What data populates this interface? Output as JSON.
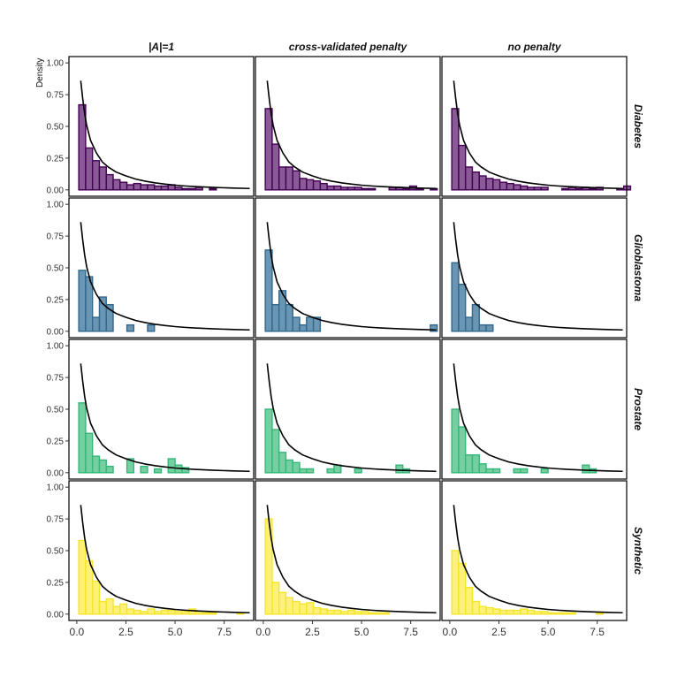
{
  "chart_data": {
    "type": "facet-histogram",
    "title": "",
    "ylabel": "Density",
    "xlabel": "",
    "xlim": [
      -0.4,
      9.0
    ],
    "ylim": [
      -0.05,
      1.05
    ],
    "x_ticks": [
      0.0,
      2.5,
      5.0,
      7.5
    ],
    "x_tick_labels": [
      "0.0",
      "2.5",
      "5.0",
      "7.5"
    ],
    "y_ticks": [
      0.0,
      0.25,
      0.5,
      0.75,
      1.0
    ],
    "y_tick_labels": [
      "0.00",
      "0.25",
      "0.50",
      "0.75",
      "1.00"
    ],
    "grid": false,
    "bin_width": 0.35,
    "columns": [
      "|A|=1",
      "cross-validated penalty",
      "no penalty"
    ],
    "rows": [
      {
        "name": "Diabetes",
        "color": "#440154",
        "fill": "#8a5a97"
      },
      {
        "name": "Glioblastoma",
        "color": "#31688e",
        "fill": "#6a96b4"
      },
      {
        "name": "Prostate",
        "color": "#35b779",
        "fill": "#76cfa0"
      },
      {
        "name": "Synthetic",
        "color": "#f5e52a",
        "fill": "#fdf17a"
      }
    ],
    "curve": {
      "description_formula": "density curve",
      "x_start": 0.2,
      "x_end": 8.8,
      "points": [
        [
          0.2,
          0.86
        ],
        [
          0.3,
          0.72
        ],
        [
          0.4,
          0.6
        ],
        [
          0.5,
          0.51
        ],
        [
          0.7,
          0.39
        ],
        [
          1.0,
          0.29
        ],
        [
          1.3,
          0.22
        ],
        [
          1.6,
          0.18
        ],
        [
          2.0,
          0.14
        ],
        [
          2.5,
          0.11
        ],
        [
          3.0,
          0.085
        ],
        [
          3.5,
          0.068
        ],
        [
          4.0,
          0.055
        ],
        [
          4.5,
          0.045
        ],
        [
          5.0,
          0.037
        ],
        [
          5.5,
          0.031
        ],
        [
          6.0,
          0.026
        ],
        [
          7.0,
          0.019
        ],
        [
          8.0,
          0.014
        ],
        [
          8.8,
          0.011
        ]
      ]
    },
    "panels": [
      [
        {
          "bins": [
            [
              0.1,
              0.67
            ],
            [
              0.45,
              0.33
            ],
            [
              0.8,
              0.23
            ],
            [
              1.15,
              0.18
            ],
            [
              1.5,
              0.12
            ],
            [
              1.85,
              0.08
            ],
            [
              2.2,
              0.06
            ],
            [
              2.55,
              0.04
            ],
            [
              2.9,
              0.05
            ],
            [
              3.25,
              0.04
            ],
            [
              3.6,
              0.04
            ],
            [
              3.95,
              0.03
            ],
            [
              4.3,
              0.03
            ],
            [
              4.65,
              0.04
            ],
            [
              5.0,
              0.02
            ],
            [
              5.35,
              0.01
            ],
            [
              5.7,
              0.01
            ],
            [
              6.05,
              0.02
            ],
            [
              6.75,
              0.01
            ]
          ]
        },
        {
          "bins": [
            [
              0.1,
              0.64
            ],
            [
              0.45,
              0.36
            ],
            [
              0.8,
              0.18
            ],
            [
              1.15,
              0.18
            ],
            [
              1.5,
              0.15
            ],
            [
              1.85,
              0.09
            ],
            [
              2.2,
              0.08
            ],
            [
              2.55,
              0.07
            ],
            [
              2.9,
              0.05
            ],
            [
              3.25,
              0.03
            ],
            [
              3.6,
              0.03
            ],
            [
              3.95,
              0.02
            ],
            [
              4.3,
              0.02
            ],
            [
              4.65,
              0.02
            ],
            [
              5.0,
              0.01
            ],
            [
              5.35,
              0.01
            ],
            [
              6.4,
              0.02
            ],
            [
              6.75,
              0.02
            ],
            [
              7.1,
              0.01
            ],
            [
              7.45,
              0.03
            ],
            [
              7.8,
              0.01
            ],
            [
              8.5,
              0.01
            ]
          ]
        },
        {
          "bins": [
            [
              0.1,
              0.64
            ],
            [
              0.45,
              0.35
            ],
            [
              0.8,
              0.18
            ],
            [
              1.15,
              0.14
            ],
            [
              1.5,
              0.11
            ],
            [
              1.85,
              0.09
            ],
            [
              2.2,
              0.08
            ],
            [
              2.55,
              0.06
            ],
            [
              2.9,
              0.05
            ],
            [
              3.25,
              0.04
            ],
            [
              3.6,
              0.03
            ],
            [
              3.95,
              0.02
            ],
            [
              4.3,
              0.02
            ],
            [
              4.65,
              0.02
            ],
            [
              5.7,
              0.01
            ],
            [
              6.05,
              0.02
            ],
            [
              6.4,
              0.01
            ],
            [
              6.75,
              0.02
            ],
            [
              7.1,
              0.01
            ],
            [
              7.45,
              0.02
            ],
            [
              8.5,
              0.01
            ],
            [
              8.85,
              0.03
            ]
          ]
        }
      ],
      [
        {
          "bins": [
            [
              0.1,
              0.48
            ],
            [
              0.45,
              0.43
            ],
            [
              0.8,
              0.11
            ],
            [
              1.15,
              0.27
            ],
            [
              1.5,
              0.21
            ],
            [
              2.55,
              0.05
            ],
            [
              3.6,
              0.05
            ]
          ]
        },
        {
          "bins": [
            [
              0.1,
              0.64
            ],
            [
              0.45,
              0.21
            ],
            [
              0.8,
              0.32
            ],
            [
              1.15,
              0.21
            ],
            [
              1.5,
              0.11
            ],
            [
              1.85,
              0.05
            ],
            [
              2.2,
              0.11
            ],
            [
              2.55,
              0.11
            ],
            [
              8.5,
              0.05
            ]
          ]
        },
        {
          "bins": [
            [
              0.1,
              0.54
            ],
            [
              0.45,
              0.37
            ],
            [
              0.8,
              0.11
            ],
            [
              1.15,
              0.21
            ],
            [
              1.5,
              0.05
            ],
            [
              1.85,
              0.05
            ]
          ]
        }
      ],
      [
        {
          "bins": [
            [
              0.1,
              0.55
            ],
            [
              0.45,
              0.31
            ],
            [
              0.8,
              0.13
            ],
            [
              1.15,
              0.1
            ],
            [
              1.5,
              0.05
            ],
            [
              2.55,
              0.11
            ],
            [
              3.25,
              0.05
            ],
            [
              3.95,
              0.03
            ],
            [
              4.65,
              0.11
            ],
            [
              5.0,
              0.06
            ],
            [
              5.35,
              0.04
            ]
          ]
        },
        {
          "bins": [
            [
              0.1,
              0.5
            ],
            [
              0.45,
              0.34
            ],
            [
              0.8,
              0.16
            ],
            [
              1.15,
              0.1
            ],
            [
              1.5,
              0.08
            ],
            [
              1.85,
              0.03
            ],
            [
              2.2,
              0.03
            ],
            [
              3.25,
              0.03
            ],
            [
              3.6,
              0.06
            ],
            [
              4.65,
              0.03
            ],
            [
              6.75,
              0.06
            ],
            [
              7.1,
              0.03
            ]
          ]
        },
        {
          "bins": [
            [
              0.1,
              0.5
            ],
            [
              0.45,
              0.36
            ],
            [
              0.8,
              0.14
            ],
            [
              1.15,
              0.14
            ],
            [
              1.5,
              0.07
            ],
            [
              1.85,
              0.03
            ],
            [
              2.2,
              0.03
            ],
            [
              3.25,
              0.03
            ],
            [
              3.6,
              0.03
            ],
            [
              4.65,
              0.03
            ],
            [
              6.75,
              0.06
            ],
            [
              7.1,
              0.03
            ]
          ]
        }
      ],
      [
        {
          "bins": [
            [
              0.1,
              0.58
            ],
            [
              0.45,
              0.42
            ],
            [
              0.8,
              0.26
            ],
            [
              1.15,
              0.1
            ],
            [
              1.5,
              0.12
            ],
            [
              1.85,
              0.06
            ],
            [
              2.2,
              0.08
            ],
            [
              2.55,
              0.04
            ],
            [
              2.9,
              0.03
            ],
            [
              3.25,
              0.02
            ],
            [
              3.6,
              0.04
            ],
            [
              3.95,
              0.02
            ],
            [
              4.3,
              0.03
            ],
            [
              4.65,
              0.03
            ],
            [
              5.0,
              0.02
            ],
            [
              5.35,
              0.02
            ],
            [
              5.7,
              0.04
            ],
            [
              6.05,
              0.02
            ],
            [
              6.4,
              0.01
            ],
            [
              6.75,
              0.01
            ],
            [
              8.15,
              0.01
            ]
          ]
        },
        {
          "bins": [
            [
              0.1,
              0.75
            ],
            [
              0.45,
              0.25
            ],
            [
              0.8,
              0.17
            ],
            [
              1.15,
              0.13
            ],
            [
              1.5,
              0.1
            ],
            [
              1.85,
              0.08
            ],
            [
              2.2,
              0.09
            ],
            [
              2.55,
              0.05
            ],
            [
              2.9,
              0.04
            ],
            [
              3.25,
              0.03
            ],
            [
              3.6,
              0.03
            ],
            [
              3.95,
              0.02
            ],
            [
              4.3,
              0.03
            ],
            [
              4.65,
              0.02
            ],
            [
              5.0,
              0.02
            ],
            [
              5.35,
              0.01
            ],
            [
              5.7,
              0.01
            ],
            [
              6.05,
              0.01
            ]
          ]
        },
        {
          "bins": [
            [
              0.1,
              0.5
            ],
            [
              0.45,
              0.4
            ],
            [
              0.8,
              0.21
            ],
            [
              1.15,
              0.1
            ],
            [
              1.5,
              0.06
            ],
            [
              1.85,
              0.05
            ],
            [
              2.2,
              0.04
            ],
            [
              2.55,
              0.03
            ],
            [
              2.9,
              0.03
            ],
            [
              3.25,
              0.03
            ],
            [
              3.6,
              0.04
            ],
            [
              3.95,
              0.03
            ],
            [
              4.3,
              0.02
            ],
            [
              4.65,
              0.02
            ],
            [
              5.0,
              0.01
            ],
            [
              5.35,
              0.01
            ],
            [
              5.7,
              0.01
            ],
            [
              6.05,
              0.01
            ],
            [
              7.45,
              0.01
            ]
          ]
        }
      ]
    ]
  }
}
